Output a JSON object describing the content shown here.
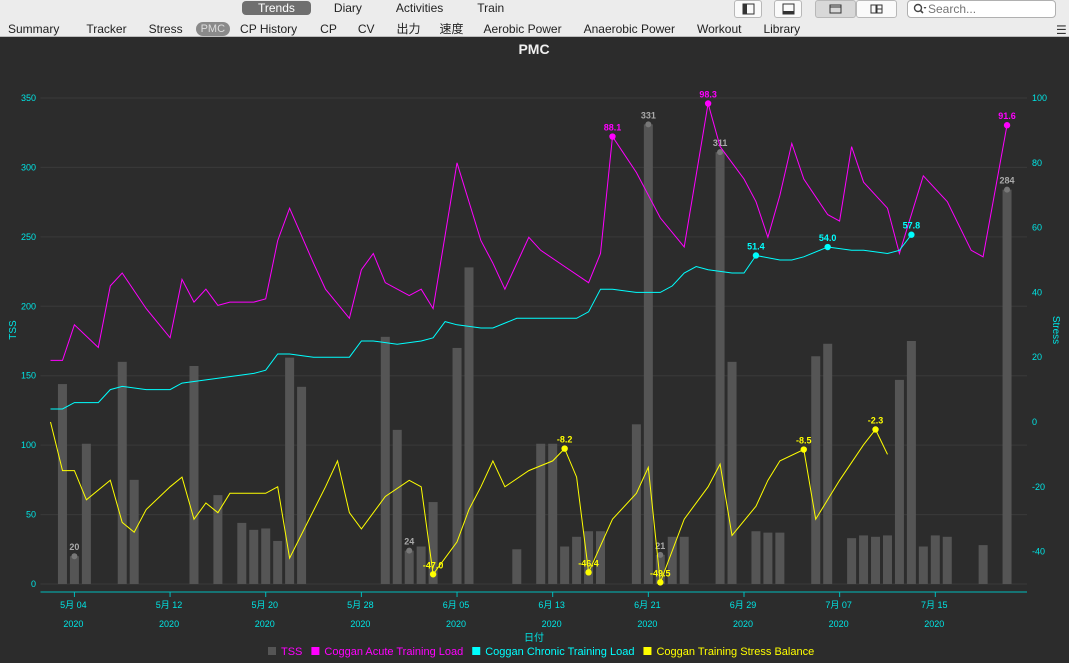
{
  "toolbar": {
    "top_tabs": [
      "Trends",
      "Diary",
      "Activities",
      "Train"
    ],
    "active_top_tab": 0,
    "sub_tabs": [
      "Summary",
      "Tracker",
      "Stress",
      "PMC",
      "CP History",
      "CP",
      "CV",
      "出力",
      "速度",
      "Aerobic Power",
      "Anaerobic Power",
      "Workout",
      "Library"
    ],
    "active_sub_tab": 3,
    "search_placeholder": "Search...",
    "icons": [
      "sidebar-toggle-icon",
      "bottom-panel-icon",
      "single-view-icon",
      "tiled-view-icon",
      "search-icon",
      "menu-icon"
    ]
  },
  "chart_data": {
    "type": "bar+line",
    "title": "PMC",
    "xlabel": "日付",
    "ylabel_left": "TSS",
    "ylabel_right": "Stress",
    "ylim_left": [
      0,
      350
    ],
    "ylim_right": [
      -50,
      100
    ],
    "left_ticks": [
      "0",
      "50",
      "100",
      "150",
      "200",
      "250",
      "300",
      "350"
    ],
    "right_ticks": [
      "-40",
      "-20",
      "0",
      "20",
      "40",
      "60",
      "80",
      "100"
    ],
    "x_ticks": [
      {
        "label": "5月 04",
        "year": "2020",
        "day": 4
      },
      {
        "label": "5月 12",
        "year": "2020",
        "day": 12
      },
      {
        "label": "5月 20",
        "year": "2020",
        "day": 20
      },
      {
        "label": "5月 28",
        "year": "2020",
        "day": 28
      },
      {
        "label": "6月 05",
        "year": "2020",
        "day": 36
      },
      {
        "label": "6月 13",
        "year": "2020",
        "day": 44
      },
      {
        "label": "6月 21",
        "year": "2020",
        "day": 52
      },
      {
        "label": "6月 29",
        "year": "2020",
        "day": 60
      },
      {
        "label": "7月 07",
        "year": "2020",
        "day": 68
      },
      {
        "label": "7月 15",
        "year": "2020",
        "day": 76
      }
    ],
    "tss_bars": [
      {
        "day": 3,
        "v": 144
      },
      {
        "day": 4,
        "v": 20,
        "label": "20"
      },
      {
        "day": 5,
        "v": 101
      },
      {
        "day": 8,
        "v": 160
      },
      {
        "day": 9,
        "v": 75
      },
      {
        "day": 14,
        "v": 157
      },
      {
        "day": 16,
        "v": 64
      },
      {
        "day": 18,
        "v": 44
      },
      {
        "day": 19,
        "v": 39
      },
      {
        "day": 20,
        "v": 40
      },
      {
        "day": 21,
        "v": 31
      },
      {
        "day": 22,
        "v": 163
      },
      {
        "day": 23,
        "v": 142
      },
      {
        "day": 30,
        "v": 178
      },
      {
        "day": 31,
        "v": 111
      },
      {
        "day": 32,
        "v": 24,
        "label": "24"
      },
      {
        "day": 33,
        "v": 27
      },
      {
        "day": 34,
        "v": 59
      },
      {
        "day": 36,
        "v": 170
      },
      {
        "day": 37,
        "v": 228
      },
      {
        "day": 41,
        "v": 25
      },
      {
        "day": 43,
        "v": 101
      },
      {
        "day": 44,
        "v": 101
      },
      {
        "day": 45,
        "v": 27
      },
      {
        "day": 46,
        "v": 34
      },
      {
        "day": 47,
        "v": 38
      },
      {
        "day": 48,
        "v": 38
      },
      {
        "day": 51,
        "v": 115
      },
      {
        "day": 52,
        "v": 331,
        "label": "331"
      },
      {
        "day": 53,
        "v": 21,
        "label": "21"
      },
      {
        "day": 54,
        "v": 34
      },
      {
        "day": 55,
        "v": 34
      },
      {
        "day": 58,
        "v": 311,
        "label": "311"
      },
      {
        "day": 59,
        "v": 160
      },
      {
        "day": 61,
        "v": 38
      },
      {
        "day": 62,
        "v": 37
      },
      {
        "day": 63,
        "v": 37
      },
      {
        "day": 66,
        "v": 164
      },
      {
        "day": 67,
        "v": 173
      },
      {
        "day": 69,
        "v": 33
      },
      {
        "day": 70,
        "v": 35
      },
      {
        "day": 71,
        "v": 34
      },
      {
        "day": 72,
        "v": 35
      },
      {
        "day": 73,
        "v": 147
      },
      {
        "day": 74,
        "v": 175
      },
      {
        "day": 75,
        "v": 27
      },
      {
        "day": 76,
        "v": 35
      },
      {
        "day": 77,
        "v": 34
      },
      {
        "day": 80,
        "v": 28
      },
      {
        "day": 82,
        "v": 284,
        "label": "284"
      }
    ],
    "series": [
      {
        "name": "Coggan Acute Training Load",
        "color": "#ff00ff",
        "points": [
          [
            2,
            19
          ],
          [
            3,
            19
          ],
          [
            4,
            30
          ],
          [
            6,
            23
          ],
          [
            7,
            42
          ],
          [
            8,
            46
          ],
          [
            10,
            35
          ],
          [
            12,
            26
          ],
          [
            13,
            44
          ],
          [
            14,
            37
          ],
          [
            15,
            41
          ],
          [
            16,
            36
          ],
          [
            17,
            37
          ],
          [
            19,
            37
          ],
          [
            20,
            38
          ],
          [
            21,
            56
          ],
          [
            22,
            66
          ],
          [
            24,
            49
          ],
          [
            25,
            41
          ],
          [
            27,
            32
          ],
          [
            28,
            47
          ],
          [
            29,
            52
          ],
          [
            30,
            43
          ],
          [
            32,
            39
          ],
          [
            33,
            41
          ],
          [
            34,
            35
          ],
          [
            36,
            80
          ],
          [
            38,
            56
          ],
          [
            39,
            49
          ],
          [
            40,
            41
          ],
          [
            42,
            57
          ],
          [
            43,
            53
          ],
          [
            45,
            48
          ],
          [
            47,
            43
          ],
          [
            48,
            52
          ],
          [
            49,
            88.1
          ],
          [
            51,
            77
          ],
          [
            53,
            63
          ],
          [
            55,
            54
          ],
          [
            57,
            98.3
          ],
          [
            58,
            85
          ],
          [
            60,
            75
          ],
          [
            61,
            68
          ],
          [
            62,
            57
          ],
          [
            63,
            70
          ],
          [
            64,
            86
          ],
          [
            65,
            75
          ],
          [
            67,
            64
          ],
          [
            68,
            62
          ],
          [
            69,
            85
          ],
          [
            70,
            74
          ],
          [
            72,
            66
          ],
          [
            73,
            52
          ],
          [
            75,
            76
          ],
          [
            77,
            68
          ],
          [
            79,
            53
          ],
          [
            80,
            51
          ],
          [
            82,
            91.6
          ]
        ],
        "labels": [
          {
            "day": 49,
            "v": 88.1,
            "text": "88.1"
          },
          {
            "day": 57,
            "v": 98.3,
            "text": "98.3"
          },
          {
            "day": 82,
            "v": 91.6,
            "text": "91.6"
          }
        ]
      },
      {
        "name": "Coggan Chronic Training Load",
        "color": "#00ffff",
        "points": [
          [
            2,
            4
          ],
          [
            3,
            4
          ],
          [
            4,
            6
          ],
          [
            6,
            6
          ],
          [
            7,
            10
          ],
          [
            8,
            11
          ],
          [
            10,
            10
          ],
          [
            12,
            10
          ],
          [
            13,
            12
          ],
          [
            15,
            13
          ],
          [
            19,
            15
          ],
          [
            20,
            16
          ],
          [
            21,
            21
          ],
          [
            22,
            21
          ],
          [
            24,
            20
          ],
          [
            27,
            20
          ],
          [
            28,
            25
          ],
          [
            29,
            25
          ],
          [
            31,
            24
          ],
          [
            33,
            25
          ],
          [
            34,
            26
          ],
          [
            35,
            31
          ],
          [
            36,
            30
          ],
          [
            38,
            29
          ],
          [
            39,
            29
          ],
          [
            41,
            32
          ],
          [
            42,
            32
          ],
          [
            44,
            32
          ],
          [
            46,
            32
          ],
          [
            47,
            34
          ],
          [
            48,
            41
          ],
          [
            49,
            41
          ],
          [
            51,
            40
          ],
          [
            53,
            40
          ],
          [
            54,
            42
          ],
          [
            55,
            46
          ],
          [
            56,
            48
          ],
          [
            57,
            47
          ],
          [
            59,
            46
          ],
          [
            60,
            46
          ],
          [
            61,
            51.4
          ],
          [
            63,
            50
          ],
          [
            64,
            50
          ],
          [
            65,
            51
          ],
          [
            67,
            54.0
          ],
          [
            69,
            53
          ],
          [
            70,
            53
          ],
          [
            72,
            52
          ],
          [
            73,
            53
          ],
          [
            74,
            57.8
          ]
        ],
        "labels": [
          {
            "day": 61,
            "v": 51.4,
            "text": "51.4"
          },
          {
            "day": 67,
            "v": 54.0,
            "text": "54.0"
          },
          {
            "day": 74,
            "v": 57.8,
            "text": "57.8"
          }
        ]
      },
      {
        "name": "Coggan Training Stress Balance",
        "color": "#ffff00",
        "points": [
          [
            2,
            0
          ],
          [
            3,
            -15
          ],
          [
            4,
            -15
          ],
          [
            5,
            -24
          ],
          [
            7,
            -18
          ],
          [
            8,
            -31
          ],
          [
            9,
            -34
          ],
          [
            10,
            -27
          ],
          [
            12,
            -20
          ],
          [
            13,
            -17
          ],
          [
            14,
            -30
          ],
          [
            15,
            -25
          ],
          [
            16,
            -28
          ],
          [
            17,
            -22
          ],
          [
            19,
            -22
          ],
          [
            20,
            -22
          ],
          [
            21,
            -20
          ],
          [
            22,
            -42
          ],
          [
            25,
            -20
          ],
          [
            26,
            -12
          ],
          [
            27,
            -28
          ],
          [
            28,
            -33
          ],
          [
            30,
            -23
          ],
          [
            32,
            -18
          ],
          [
            33,
            -20
          ],
          [
            34,
            -47.0
          ],
          [
            36,
            -37
          ],
          [
            37,
            -27
          ],
          [
            38,
            -20
          ],
          [
            39,
            -12
          ],
          [
            40,
            -20
          ],
          [
            42,
            -15
          ],
          [
            44,
            -12
          ],
          [
            45,
            -8.2
          ],
          [
            46,
            -17
          ],
          [
            47,
            -46.4
          ],
          [
            49,
            -30
          ],
          [
            51,
            -22
          ],
          [
            52,
            -14
          ],
          [
            53,
            -49.5
          ],
          [
            55,
            -30
          ],
          [
            57,
            -20
          ],
          [
            58,
            -13
          ],
          [
            59,
            -35
          ],
          [
            61,
            -26
          ],
          [
            62,
            -18
          ],
          [
            63,
            -12
          ],
          [
            65,
            -8.5
          ],
          [
            66,
            -30
          ],
          [
            68,
            -18
          ],
          [
            70,
            -7
          ],
          [
            71,
            -2.3
          ],
          [
            72,
            -10
          ]
        ],
        "labels": [
          {
            "day": 45,
            "v": -8.2,
            "text": "-8.2"
          },
          {
            "day": 34,
            "v": -47.0,
            "text": "-47.0"
          },
          {
            "day": 47,
            "v": -46.4,
            "text": "-46.4"
          },
          {
            "day": 53,
            "v": -49.5,
            "text": "-49.5"
          },
          {
            "day": 65,
            "v": -8.5,
            "text": "-8.5"
          },
          {
            "day": 71,
            "v": -2.3,
            "text": "-2.3"
          }
        ]
      }
    ],
    "legend": [
      {
        "name": "TSS",
        "color": "#555555"
      },
      {
        "name": "Coggan Acute Training Load",
        "color": "#ff00ff"
      },
      {
        "name": "Coggan Chronic Training Load",
        "color": "#00ffff"
      },
      {
        "name": "Coggan Training Stress Balance",
        "color": "#ffff00"
      }
    ]
  }
}
